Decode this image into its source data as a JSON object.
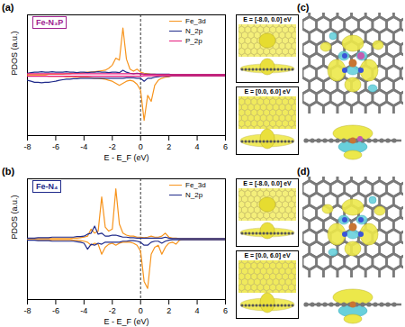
{
  "chart_data": [
    {
      "type": "line",
      "panel_label": "(a)",
      "title": "Fe-N₃P",
      "xlabel": "E - E_F (eV)",
      "ylabel": "PDOS (a.u.)",
      "xlim": [
        -8,
        6
      ],
      "xticks": [
        -8,
        -6,
        -4,
        -2,
        0,
        2,
        4,
        6
      ],
      "ylim": [
        -6,
        6
      ],
      "tick_labels": "x",
      "legend": "top-right",
      "reference_line_x": 0,
      "insets": [
        "E = [-8.0, 0.0] eV",
        "E = [0.0, 6.0] eV"
      ],
      "x": [
        -8,
        -7.75,
        -7.5,
        -7.25,
        -7,
        -6.75,
        -6.5,
        -6.25,
        -6,
        -5.75,
        -5.5,
        -5.25,
        -5,
        -4.75,
        -4.5,
        -4.25,
        -4,
        -3.75,
        -3.5,
        -3.25,
        -3,
        -2.75,
        -2.5,
        -2.25,
        -2,
        -1.75,
        -1.5,
        -1.25,
        -1,
        -0.75,
        -0.5,
        -0.25,
        0,
        0.25,
        0.5,
        0.75,
        1,
        1.25,
        1.5,
        1.75,
        2,
        2.25,
        2.5,
        2.75,
        3,
        3.25,
        3.5,
        3.75,
        4,
        4.25,
        4.5,
        4.75,
        5,
        5.25,
        5.5,
        5.75,
        6
      ],
      "series": [
        {
          "name": "Fe_3d",
          "color": "#f7941d",
          "values": [
            0.05,
            0.05,
            0.05,
            0.05,
            0.05,
            0.05,
            0.1,
            0.1,
            0.1,
            0.1,
            0.1,
            0.15,
            0.15,
            0.2,
            0.2,
            0.2,
            0.25,
            0.3,
            0.3,
            0.35,
            0.4,
            0.45,
            0.5,
            0.7,
            1.0,
            1.7,
            1.5,
            4.7,
            1.6,
            0.6,
            0.4,
            0.6,
            0.3,
            0.2,
            0.15,
            0.1,
            0.1,
            0.05,
            0.05,
            0.05,
            0.05,
            0.05,
            0.05,
            0.05,
            0.05,
            0.05,
            0.05,
            0.05,
            0.05,
            0.05,
            0.05,
            0.05,
            0.05,
            0.05,
            0.05,
            0.05,
            0.05
          ],
          "down_values": [
            -0.05,
            -0.05,
            -0.05,
            -0.05,
            -0.05,
            -0.05,
            -0.1,
            -0.1,
            -0.1,
            -0.1,
            -0.1,
            -0.15,
            -0.15,
            -0.15,
            -0.2,
            -0.2,
            -0.2,
            -0.2,
            -0.25,
            -0.3,
            -0.3,
            -0.35,
            -0.4,
            -0.5,
            -0.6,
            -0.8,
            -1.0,
            -0.8,
            -0.6,
            -0.5,
            -0.6,
            -0.9,
            -1.5,
            -4.5,
            -2.0,
            -2.6,
            -1.0,
            -0.5,
            -0.3,
            -0.2,
            -0.15,
            -0.05,
            -0.05,
            -0.05,
            -0.05,
            -0.05,
            -0.05,
            -0.05,
            -0.05,
            -0.05,
            -0.05,
            -0.05,
            -0.05,
            -0.05,
            -0.05,
            -0.05,
            -0.05
          ]
        },
        {
          "name": "N_2p",
          "color": "#1f2a8a",
          "values": [
            0.2,
            0.25,
            0.3,
            0.3,
            0.35,
            0.3,
            0.3,
            0.35,
            0.3,
            0.3,
            0.3,
            0.35,
            0.3,
            0.3,
            0.25,
            0.3,
            0.3,
            0.25,
            0.3,
            0.3,
            0.35,
            0.3,
            0.3,
            0.25,
            0.3,
            0.3,
            0.25,
            0.5,
            0.3,
            0.2,
            0.15,
            0.2,
            0.15,
            0.1,
            0.1,
            0.1,
            0.1,
            0.1,
            0.1,
            0.1,
            0.1,
            0.05,
            0.05,
            0.05,
            0.05,
            0.05,
            0.05,
            0.05,
            0.05,
            0.05,
            0.05,
            0.05,
            0.05,
            0.05,
            0.05,
            0.05,
            0.05
          ],
          "down_values": [
            -0.5,
            -0.6,
            -0.7,
            -0.7,
            -0.75,
            -0.7,
            -0.7,
            -0.65,
            -0.6,
            -0.5,
            -0.45,
            -0.4,
            -0.4,
            -0.35,
            -0.35,
            -0.3,
            -0.3,
            -0.3,
            -0.3,
            -0.3,
            -0.3,
            -0.3,
            -0.3,
            -0.3,
            -0.3,
            -0.3,
            -0.3,
            -0.3,
            -0.25,
            -0.25,
            -0.25,
            -0.3,
            -0.3,
            -0.6,
            -0.3,
            -0.3,
            -0.2,
            -0.15,
            -0.1,
            -0.1,
            -0.1,
            -0.05,
            -0.05,
            -0.05,
            -0.05,
            -0.05,
            -0.05,
            -0.05,
            -0.05,
            -0.05,
            -0.05,
            -0.05,
            -0.05,
            -0.05,
            -0.05,
            -0.05,
            -0.05
          ]
        },
        {
          "name": "P_2p",
          "color": "#e6197d",
          "values": [
            0.15,
            0.15,
            0.15,
            0.15,
            0.15,
            0.15,
            0.15,
            0.15,
            0.15,
            0.15,
            0.15,
            0.15,
            0.15,
            0.15,
            0.15,
            0.15,
            0.15,
            0.15,
            0.15,
            0.15,
            0.15,
            0.15,
            0.15,
            0.15,
            0.15,
            0.15,
            0.15,
            0.15,
            0.15,
            0.15,
            0.15,
            0.15,
            0.15,
            0.05,
            0.05,
            0.05,
            0.05,
            0.05,
            0.05,
            0.05,
            0.05,
            0.05,
            0.05,
            0.05,
            0.05,
            0.05,
            0.05,
            0.05,
            0.05,
            0.05,
            0.05,
            0.05,
            0.05,
            0.05,
            0.05,
            0.05,
            0.05
          ],
          "down_values": [
            -0.1,
            -0.1,
            -0.1,
            -0.1,
            -0.1,
            -0.1,
            -0.1,
            -0.1,
            -0.1,
            -0.1,
            -0.1,
            -0.1,
            -0.1,
            -0.1,
            -0.1,
            -0.1,
            -0.1,
            -0.1,
            -0.1,
            -0.1,
            -0.1,
            -0.1,
            -0.1,
            -0.1,
            -0.1,
            -0.1,
            -0.1,
            -0.1,
            -0.1,
            -0.1,
            -0.1,
            -0.1,
            -0.1,
            -0.05,
            -0.05,
            -0.05,
            -0.05,
            -0.05,
            -0.05,
            -0.05,
            -0.05,
            -0.05,
            -0.05,
            -0.05,
            -0.05,
            -0.05,
            -0.05,
            -0.05,
            -0.05,
            -0.05,
            -0.05,
            -0.05,
            -0.05,
            -0.05,
            -0.05,
            -0.05,
            -0.05
          ]
        }
      ]
    },
    {
      "type": "line",
      "panel_label": "(b)",
      "title": "Fe-N₄",
      "xlabel": "E - E_F (eV)",
      "ylabel": "PDOS (a.u.)",
      "xlim": [
        -8,
        6
      ],
      "xticks": [
        -8,
        -6,
        -4,
        -2,
        0,
        2,
        4,
        6
      ],
      "ylim": [
        -6,
        6
      ],
      "tick_labels": "x",
      "legend": "top-right",
      "reference_line_x": 0,
      "insets": [
        "E = [-8.0, 0.0] eV",
        "E = [0.0, 6.0] eV"
      ],
      "x": [
        -8,
        -7.75,
        -7.5,
        -7.25,
        -7,
        -6.75,
        -6.5,
        -6.25,
        -6,
        -5.75,
        -5.5,
        -5.25,
        -5,
        -4.75,
        -4.5,
        -4.25,
        -4,
        -3.75,
        -3.5,
        -3.25,
        -3,
        -2.75,
        -2.5,
        -2.25,
        -2,
        -1.75,
        -1.5,
        -1.25,
        -1,
        -0.75,
        -0.5,
        -0.25,
        0,
        0.25,
        0.5,
        0.75,
        1,
        1.25,
        1.5,
        1.75,
        2,
        2.25,
        2.5,
        2.75,
        3,
        3.25,
        3.5,
        3.75,
        4,
        4.25,
        4.5,
        4.75,
        5,
        5.25,
        5.5,
        5.75,
        6
      ],
      "series": [
        {
          "name": "Fe_3d",
          "color": "#f7941d",
          "values": [
            0.05,
            0.05,
            0.05,
            0.05,
            0.05,
            0.05,
            0.05,
            0.05,
            0.05,
            0.05,
            0.05,
            0.05,
            0.05,
            0.1,
            0.1,
            0.15,
            0.2,
            0.3,
            1.0,
            0.6,
            0.8,
            4.2,
            1.2,
            0.8,
            1.0,
            5.0,
            1.5,
            0.6,
            0.4,
            0.3,
            0.3,
            0.2,
            0.2,
            0.15,
            0.2,
            0.3,
            0.2,
            0.2,
            0.3,
            0.6,
            0.2,
            0.1,
            0.1,
            0.05,
            0.05,
            0.05,
            0.05,
            0.05,
            0.05,
            0.05,
            0.05,
            0.05,
            0.05,
            0.05,
            0.05,
            0.05,
            0.05
          ],
          "down_values": [
            -0.05,
            -0.05,
            -0.05,
            -0.05,
            -0.05,
            -0.05,
            -0.05,
            -0.05,
            -0.05,
            -0.05,
            -0.05,
            -0.05,
            -0.05,
            -0.1,
            -0.1,
            -0.15,
            -0.2,
            -0.3,
            -0.6,
            -0.4,
            -0.5,
            -1.5,
            -0.8,
            -0.5,
            -0.4,
            -0.6,
            -0.4,
            -0.3,
            -0.3,
            -0.3,
            -0.4,
            -0.6,
            -1.2,
            -4.2,
            -4.9,
            -1.5,
            -0.8,
            -0.6,
            -1.5,
            -0.8,
            -0.4,
            -0.3,
            -0.5,
            -0.1,
            -0.05,
            -0.05,
            -0.05,
            -0.05,
            -0.05,
            -0.05,
            -0.05,
            -0.05,
            -0.05,
            -0.05,
            -0.05,
            -0.05,
            -0.05
          ]
        },
        {
          "name": "N_2p",
          "color": "#1f2a8a",
          "values": [
            0.1,
            0.1,
            0.1,
            0.15,
            0.15,
            0.15,
            0.15,
            0.2,
            0.2,
            0.2,
            0.2,
            0.2,
            0.2,
            0.2,
            0.25,
            0.25,
            0.3,
            0.5,
            0.6,
            1.3,
            0.5,
            0.6,
            0.3,
            0.3,
            0.4,
            0.4,
            0.3,
            0.2,
            0.2,
            0.15,
            0.15,
            0.1,
            0.1,
            0.1,
            0.1,
            0.1,
            0.1,
            0.1,
            0.1,
            0.2,
            0.1,
            0.05,
            0.05,
            0.05,
            0.05,
            0.05,
            0.05,
            0.05,
            0.05,
            0.05,
            0.05,
            0.05,
            0.05,
            0.05,
            0.05,
            0.05,
            0.05
          ],
          "down_values": [
            -0.1,
            -0.1,
            -0.1,
            -0.15,
            -0.15,
            -0.15,
            -0.15,
            -0.2,
            -0.2,
            -0.2,
            -0.2,
            -0.2,
            -0.2,
            -0.2,
            -0.25,
            -0.3,
            -0.4,
            -1.0,
            -0.5,
            -0.6,
            -0.4,
            -0.5,
            -0.3,
            -0.3,
            -0.3,
            -0.3,
            -0.3,
            -0.2,
            -0.2,
            -0.15,
            -0.15,
            -0.2,
            -0.3,
            -0.6,
            -0.6,
            -0.3,
            -0.2,
            -0.2,
            -0.4,
            -0.2,
            -0.1,
            -0.05,
            -0.05,
            -0.05,
            -0.05,
            -0.05,
            -0.05,
            -0.05,
            -0.05,
            -0.05,
            -0.05,
            -0.05,
            -0.05,
            -0.05,
            -0.05,
            -0.05,
            -0.05
          ]
        }
      ]
    }
  ],
  "images": [
    {
      "panel_label": "(c)"
    },
    {
      "panel_label": "(d)"
    }
  ]
}
